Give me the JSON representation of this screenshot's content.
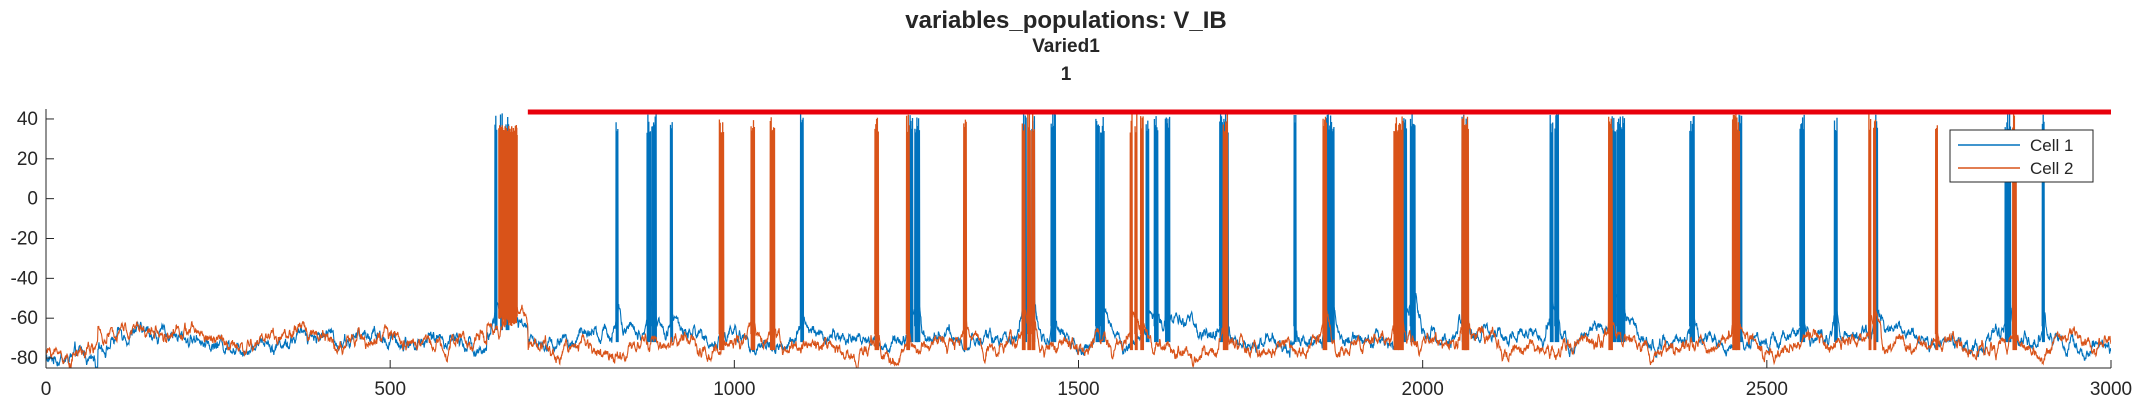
{
  "colors": {
    "series1": "#0072BD",
    "series2": "#D95319",
    "marker_line": "#E8000B",
    "axis": "#262626"
  },
  "chart_data": {
    "type": "line",
    "title": "variables_populations: V_IB",
    "subtitle": "Varied1",
    "subtitle2": "1",
    "xlabel": "",
    "ylabel": "",
    "xlim": [
      0,
      3000
    ],
    "ylim": [
      -85,
      45
    ],
    "xticks": [
      0,
      500,
      1000,
      1500,
      2000,
      2500,
      3000
    ],
    "yticks": [
      40,
      20,
      0,
      -20,
      -40,
      -60,
      -80
    ],
    "grid": false,
    "legend_position": "top-right",
    "reference_line": {
      "y": 43.5,
      "x_start": 700,
      "x_end": 3000
    },
    "series": [
      {
        "name": "Cell 1",
        "baseline_segments": [
          {
            "x": [
              0,
              75
            ],
            "level": -80
          },
          {
            "x": [
              75,
              640
            ],
            "level": -70
          },
          {
            "x": [
              640,
              700
            ],
            "level": -64
          },
          {
            "x": [
              700,
              3000
            ],
            "level": -70
          }
        ],
        "burst_times": [
          652,
          660,
          668,
          828,
          873,
          880,
          907,
          1096,
          1255,
          1262,
          1265,
          1420,
          1432,
          1460,
          1525,
          1532,
          1598,
          1610,
          1626,
          1705,
          1711,
          1813,
          1860,
          1866,
          1970,
          1982,
          1986,
          2057,
          2185,
          2192,
          2275,
          2282,
          2288,
          2388,
          2457,
          2548,
          2598,
          2658,
          2846,
          2850,
          2900
        ],
        "burst_peak": 43
      },
      {
        "name": "Cell 2",
        "baseline_segments": [
          {
            "x": [
              0,
              75
            ],
            "level": -78
          },
          {
            "x": [
              75,
              640
            ],
            "level": -71
          },
          {
            "x": [
              640,
              700
            ],
            "level": -63
          },
          {
            "x": [
              700,
              3000
            ],
            "level": -74
          }
        ],
        "burst_window": [
          658,
          685
        ],
        "burst_times": [
          978,
          1024,
          1052,
          1204,
          1250,
          1333,
          1418,
          1426,
          1432,
          1575,
          1582,
          1590,
          1710,
          1855,
          1958,
          1965,
          2057,
          2060,
          2270,
          2450,
          2455,
          2648,
          2655,
          2745,
          2857
        ],
        "burst_peak": 43
      }
    ]
  }
}
